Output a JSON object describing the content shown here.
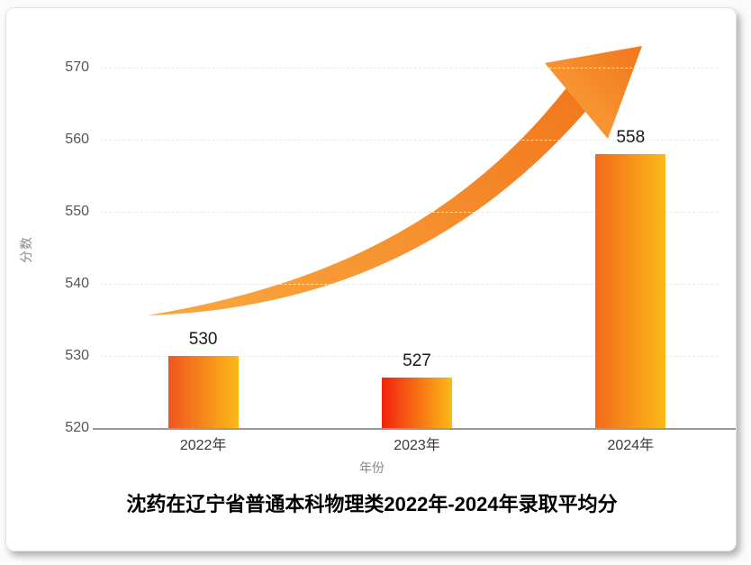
{
  "page": {
    "background": "#fbfbfb",
    "card_background": "#ffffff"
  },
  "chart_data": {
    "type": "bar",
    "title": "沈药在辽宁省普通本科物理类2022年-2024年录取平均分",
    "xlabel": "年份",
    "ylabel": "分数",
    "categories": [
      "2022年",
      "2023年",
      "2024年"
    ],
    "values": [
      530,
      527,
      558
    ],
    "data_labels": [
      "530",
      "527",
      "558"
    ],
    "ylim": [
      520,
      575
    ],
    "yticks": [
      520,
      530,
      540,
      550,
      560,
      570
    ],
    "legend": "none",
    "grid": "horizontal-dashed",
    "annotations": [
      "upward curved growth arrow"
    ],
    "colors": {
      "bar_gradient_left": [
        "#F0551F",
        "#F2220F",
        "#F26A1B"
      ],
      "bar_gradient_right": "#FBBA17",
      "arrow_start": "#F9A83F",
      "arrow_end": "#F2751C",
      "axis_line": "#999999",
      "gridline": "#e9e9e9",
      "y_tick_label": "#555555",
      "x_tick_label": "#3a3a3a",
      "value_label": "#1a1a1a",
      "axis_title": "#888888",
      "title": "#000000"
    }
  }
}
